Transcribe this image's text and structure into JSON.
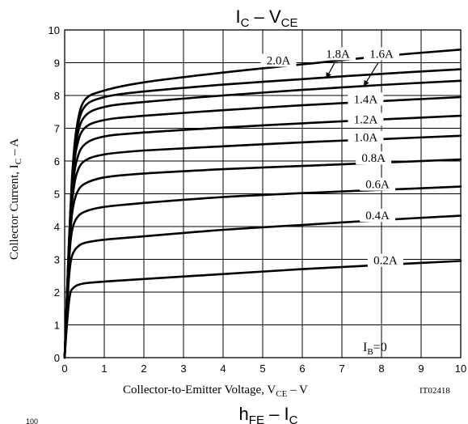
{
  "chart_data": {
    "type": "line",
    "title": {
      "main": "I",
      "main_sub": "C",
      "dash": "–",
      "second": "V",
      "second_sub": "CE"
    },
    "ylabel": {
      "main": "Collector Current,  I",
      "sub": "C",
      "tail": "  –  A"
    },
    "xlabel": {
      "main": "Collector-to-Emitter Voltage,  V",
      "sub": "CE",
      "tail": "  –  V"
    },
    "figure_code": "IT02418",
    "xlim": [
      0,
      10
    ],
    "ylim": [
      0,
      10
    ],
    "x_ticks": [
      "0",
      "1",
      "2",
      "3",
      "4",
      "5",
      "6",
      "7",
      "8",
      "9",
      "10"
    ],
    "y_ticks": [
      "0",
      "1",
      "2",
      "3",
      "4",
      "5",
      "6",
      "7",
      "8",
      "9",
      "10"
    ],
    "grid": true,
    "series": [
      {
        "name": "0.2A",
        "x": [
          0,
          0.05,
          0.1,
          0.15,
          0.2,
          0.3,
          0.5,
          1,
          2,
          4,
          6,
          8,
          10
        ],
        "y": [
          0,
          0.9,
          1.6,
          2.0,
          2.1,
          2.2,
          2.27,
          2.32,
          2.4,
          2.55,
          2.7,
          2.83,
          2.95
        ]
      },
      {
        "name": "0.4A",
        "x": [
          0,
          0.05,
          0.1,
          0.15,
          0.2,
          0.3,
          0.5,
          1,
          2,
          4,
          6,
          8,
          10
        ],
        "y": [
          0,
          1.2,
          2.3,
          2.9,
          3.15,
          3.35,
          3.5,
          3.6,
          3.7,
          3.9,
          4.05,
          4.2,
          4.33
        ]
      },
      {
        "name": "0.6A",
        "x": [
          0,
          0.05,
          0.1,
          0.15,
          0.2,
          0.3,
          0.5,
          1,
          2,
          4,
          6,
          8,
          10
        ],
        "y": [
          0,
          1.4,
          2.7,
          3.55,
          3.95,
          4.25,
          4.45,
          4.6,
          4.72,
          4.9,
          5.02,
          5.12,
          5.22
        ]
      },
      {
        "name": "0.8A",
        "x": [
          0,
          0.05,
          0.1,
          0.15,
          0.2,
          0.3,
          0.5,
          1,
          2,
          4,
          6,
          8,
          10
        ],
        "y": [
          0,
          1.5,
          2.9,
          3.9,
          4.5,
          5.0,
          5.3,
          5.5,
          5.62,
          5.75,
          5.85,
          5.95,
          6.05
        ]
      },
      {
        "name": "1.0A",
        "x": [
          0,
          0.05,
          0.1,
          0.15,
          0.2,
          0.3,
          0.5,
          1,
          2,
          4,
          6,
          8,
          10
        ],
        "y": [
          0,
          1.55,
          3.0,
          4.15,
          4.9,
          5.6,
          6.0,
          6.2,
          6.32,
          6.45,
          6.57,
          6.67,
          6.77
        ]
      },
      {
        "name": "1.2A",
        "x": [
          0,
          0.05,
          0.1,
          0.15,
          0.2,
          0.3,
          0.5,
          1,
          2,
          4,
          6,
          8,
          10
        ],
        "y": [
          0,
          1.6,
          3.1,
          4.3,
          5.2,
          6.0,
          6.5,
          6.75,
          6.87,
          7.02,
          7.15,
          7.27,
          7.38
        ]
      },
      {
        "name": "1.4A",
        "x": [
          0,
          0.05,
          0.1,
          0.15,
          0.2,
          0.3,
          0.5,
          1,
          2,
          4,
          6,
          8,
          10
        ],
        "y": [
          0,
          1.62,
          3.15,
          4.4,
          5.4,
          6.4,
          7.0,
          7.25,
          7.38,
          7.55,
          7.7,
          7.83,
          7.95
        ]
      },
      {
        "name": "1.6A",
        "x": [
          0,
          0.05,
          0.1,
          0.15,
          0.2,
          0.3,
          0.5,
          1,
          2,
          4,
          6,
          8,
          10
        ],
        "y": [
          0,
          1.65,
          3.2,
          4.5,
          5.55,
          6.65,
          7.35,
          7.65,
          7.8,
          8.0,
          8.17,
          8.32,
          8.45
        ]
      },
      {
        "name": "1.8A",
        "x": [
          0,
          0.05,
          0.1,
          0.15,
          0.2,
          0.3,
          0.5,
          1,
          2,
          4,
          6,
          8,
          10
        ],
        "y": [
          0,
          1.67,
          3.25,
          4.55,
          5.65,
          6.85,
          7.65,
          7.95,
          8.12,
          8.33,
          8.5,
          8.66,
          8.8
        ]
      },
      {
        "name": "2.0A",
        "x": [
          0,
          0.05,
          0.1,
          0.15,
          0.2,
          0.3,
          0.5,
          1,
          2,
          4,
          6,
          8,
          10
        ],
        "y": [
          0,
          1.7,
          3.3,
          4.6,
          5.75,
          7.0,
          7.85,
          8.15,
          8.4,
          8.7,
          8.95,
          9.2,
          9.4
        ]
      }
    ],
    "series_labels": [
      {
        "text": "0.2A",
        "x": 8.1,
        "y": 2.85
      },
      {
        "text": "0.4A",
        "x": 7.9,
        "y": 4.22
      },
      {
        "text": "0.6A",
        "x": 7.9,
        "y": 5.17
      },
      {
        "text": "0.8A",
        "x": 7.8,
        "y": 5.97
      },
      {
        "text": "1.0A",
        "x": 7.6,
        "y": 6.6
      },
      {
        "text": "1.2A",
        "x": 7.6,
        "y": 7.15
      },
      {
        "text": "1.4A",
        "x": 7.6,
        "y": 7.77
      }
    ],
    "callouts": [
      {
        "text": "2.0A",
        "x": 5.4,
        "y": 8.95
      },
      {
        "text": "1.8A",
        "x": 6.9,
        "y": 9.15,
        "arrow_to": {
          "x": 6.6,
          "y": 8.52
        }
      },
      {
        "text": "1.6A",
        "x": 8.0,
        "y": 9.15,
        "arrow_to": {
          "x": 7.55,
          "y": 8.28
        }
      }
    ],
    "ib_label": {
      "main": "I",
      "sub": "B",
      "tail": "=0",
      "x": 7.2,
      "y": 0.2
    }
  },
  "next_chart_title": {
    "main": "h",
    "main_sub": "FE",
    "dash": "–",
    "second": "I",
    "second_sub": "C"
  },
  "next_chart_tick": "100"
}
